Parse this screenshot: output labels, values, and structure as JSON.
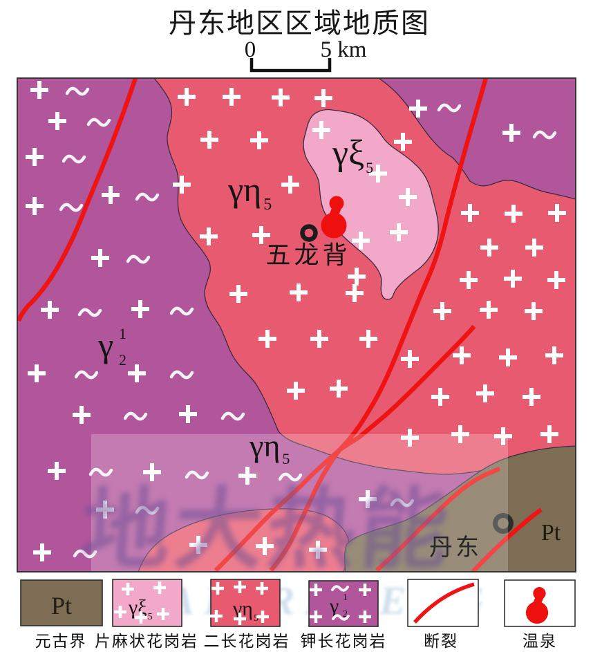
{
  "title": "丹东地区区域地质图",
  "scale_bar": {
    "zero": "0",
    "five_km": "5 km"
  },
  "watermarks": {
    "map_cn": "地大热能",
    "legend_latin": "DADIRENENG"
  },
  "colors": {
    "purple": "#b2569c",
    "pink": "#e85a70",
    "light_pink": "#f2a9c9",
    "brown": "#7d6d54",
    "fault_red": "#ee1414",
    "spring_red": "#ee0f0f",
    "region_border": "#3a2b3e"
  },
  "map": {
    "labels": {
      "gneissic": {
        "main": "γξ",
        "sub": "5"
      },
      "monzonite_upper": {
        "main": "γη",
        "sub": "5"
      },
      "monzonite_lower": {
        "main": "γη",
        "sub": "5"
      },
      "kfeldspar": {
        "main": "γ",
        "sup": "1",
        "sub": "2"
      },
      "proterozoic": "Pt",
      "wulongbei": "五龙背",
      "dandong": "丹东"
    }
  },
  "symbols": {
    "plus_large": [
      [
        270,
        140
      ],
      [
        335,
        140
      ],
      [
        406,
        141
      ],
      [
        468,
        142
      ],
      [
        303,
        202
      ],
      [
        375,
        203
      ],
      [
        583,
        205
      ],
      [
        263,
        267
      ],
      [
        420,
        267
      ],
      [
        302,
        342
      ],
      [
        378,
        340
      ],
      [
        522,
        348
      ],
      [
        345,
        425
      ],
      [
        432,
        423
      ],
      [
        513,
        424
      ],
      [
        387,
        490
      ],
      [
        462,
        490
      ],
      [
        533,
        490
      ],
      [
        428,
        565
      ],
      [
        490,
        562
      ],
      [
        680,
        308
      ],
      [
        743,
        309
      ],
      [
        806,
        308
      ],
      [
        708,
        358
      ],
      [
        773,
        358
      ],
      [
        678,
        405
      ],
      [
        742,
        403
      ],
      [
        805,
        405
      ],
      [
        640,
        450
      ],
      [
        707,
        448
      ],
      [
        772,
        450
      ],
      [
        593,
        519
      ],
      [
        668,
        514
      ],
      [
        735,
        517
      ],
      [
        802,
        514
      ],
      [
        637,
        574
      ],
      [
        702,
        569
      ],
      [
        769,
        574
      ],
      [
        593,
        633
      ],
      [
        666,
        628
      ],
      [
        728,
        631
      ],
      [
        795,
        628
      ],
      [
        465,
        188
      ],
      [
        547,
        251
      ],
      [
        590,
        285
      ],
      [
        577,
        336
      ],
      [
        516,
        400
      ],
      [
        287,
        788
      ],
      [
        383,
        790
      ],
      [
        460,
        795
      ],
      [
        57,
        130
      ],
      [
        83,
        175
      ],
      [
        50,
        227
      ],
      [
        160,
        282
      ],
      [
        50,
        298
      ],
      [
        145,
        373
      ],
      [
        72,
        448
      ],
      [
        203,
        447
      ],
      [
        53,
        540
      ],
      [
        198,
        540
      ],
      [
        118,
        600
      ],
      [
        272,
        599
      ],
      [
        82,
        681
      ],
      [
        220,
        683
      ],
      [
        358,
        688
      ],
      [
        152,
        737
      ],
      [
        61,
        799
      ],
      [
        532,
        722
      ],
      [
        605,
        157
      ],
      [
        740,
        192
      ]
    ],
    "tilde_large": [
      [
        112,
        132
      ],
      [
        143,
        177
      ],
      [
        107,
        230
      ],
      [
        213,
        285
      ],
      [
        103,
        300
      ],
      [
        200,
        375
      ],
      [
        130,
        452
      ],
      [
        263,
        450
      ],
      [
        125,
        542
      ],
      [
        263,
        542
      ],
      [
        196,
        602
      ],
      [
        337,
        602
      ],
      [
        146,
        683
      ],
      [
        285,
        687
      ],
      [
        420,
        690
      ],
      [
        213,
        738
      ],
      [
        123,
        801
      ],
      [
        582,
        727
      ],
      [
        650,
        156
      ],
      [
        788,
        195
      ]
    ],
    "plus_small": [
      [
        185,
        852
      ],
      [
        231,
        850
      ],
      [
        174,
        885
      ],
      [
        204,
        893
      ],
      [
        236,
        888
      ],
      [
        315,
        851
      ],
      [
        347,
        849
      ],
      [
        379,
        851
      ],
      [
        313,
        891
      ],
      [
        347,
        895
      ],
      [
        380,
        892
      ],
      [
        457,
        853
      ],
      [
        528,
        853
      ],
      [
        457,
        892
      ],
      [
        528,
        892
      ]
    ],
    "tilde_small": [
      [
        492,
        851
      ],
      [
        493,
        893
      ]
    ]
  },
  "legend": {
    "items": [
      {
        "code": "Pt",
        "caption": "元古界"
      },
      {
        "label": {
          "main": "γξ",
          "sub": "5"
        },
        "caption": "片麻状花岗岩"
      },
      {
        "label": {
          "main": "γη",
          "sub": "5"
        },
        "caption": "二长花岗岩"
      },
      {
        "label": {
          "main": "γ",
          "sup": "1",
          "sub": "2"
        },
        "caption": "钾长花岗岩"
      },
      {
        "caption": "断裂"
      },
      {
        "caption": "温泉"
      }
    ]
  }
}
